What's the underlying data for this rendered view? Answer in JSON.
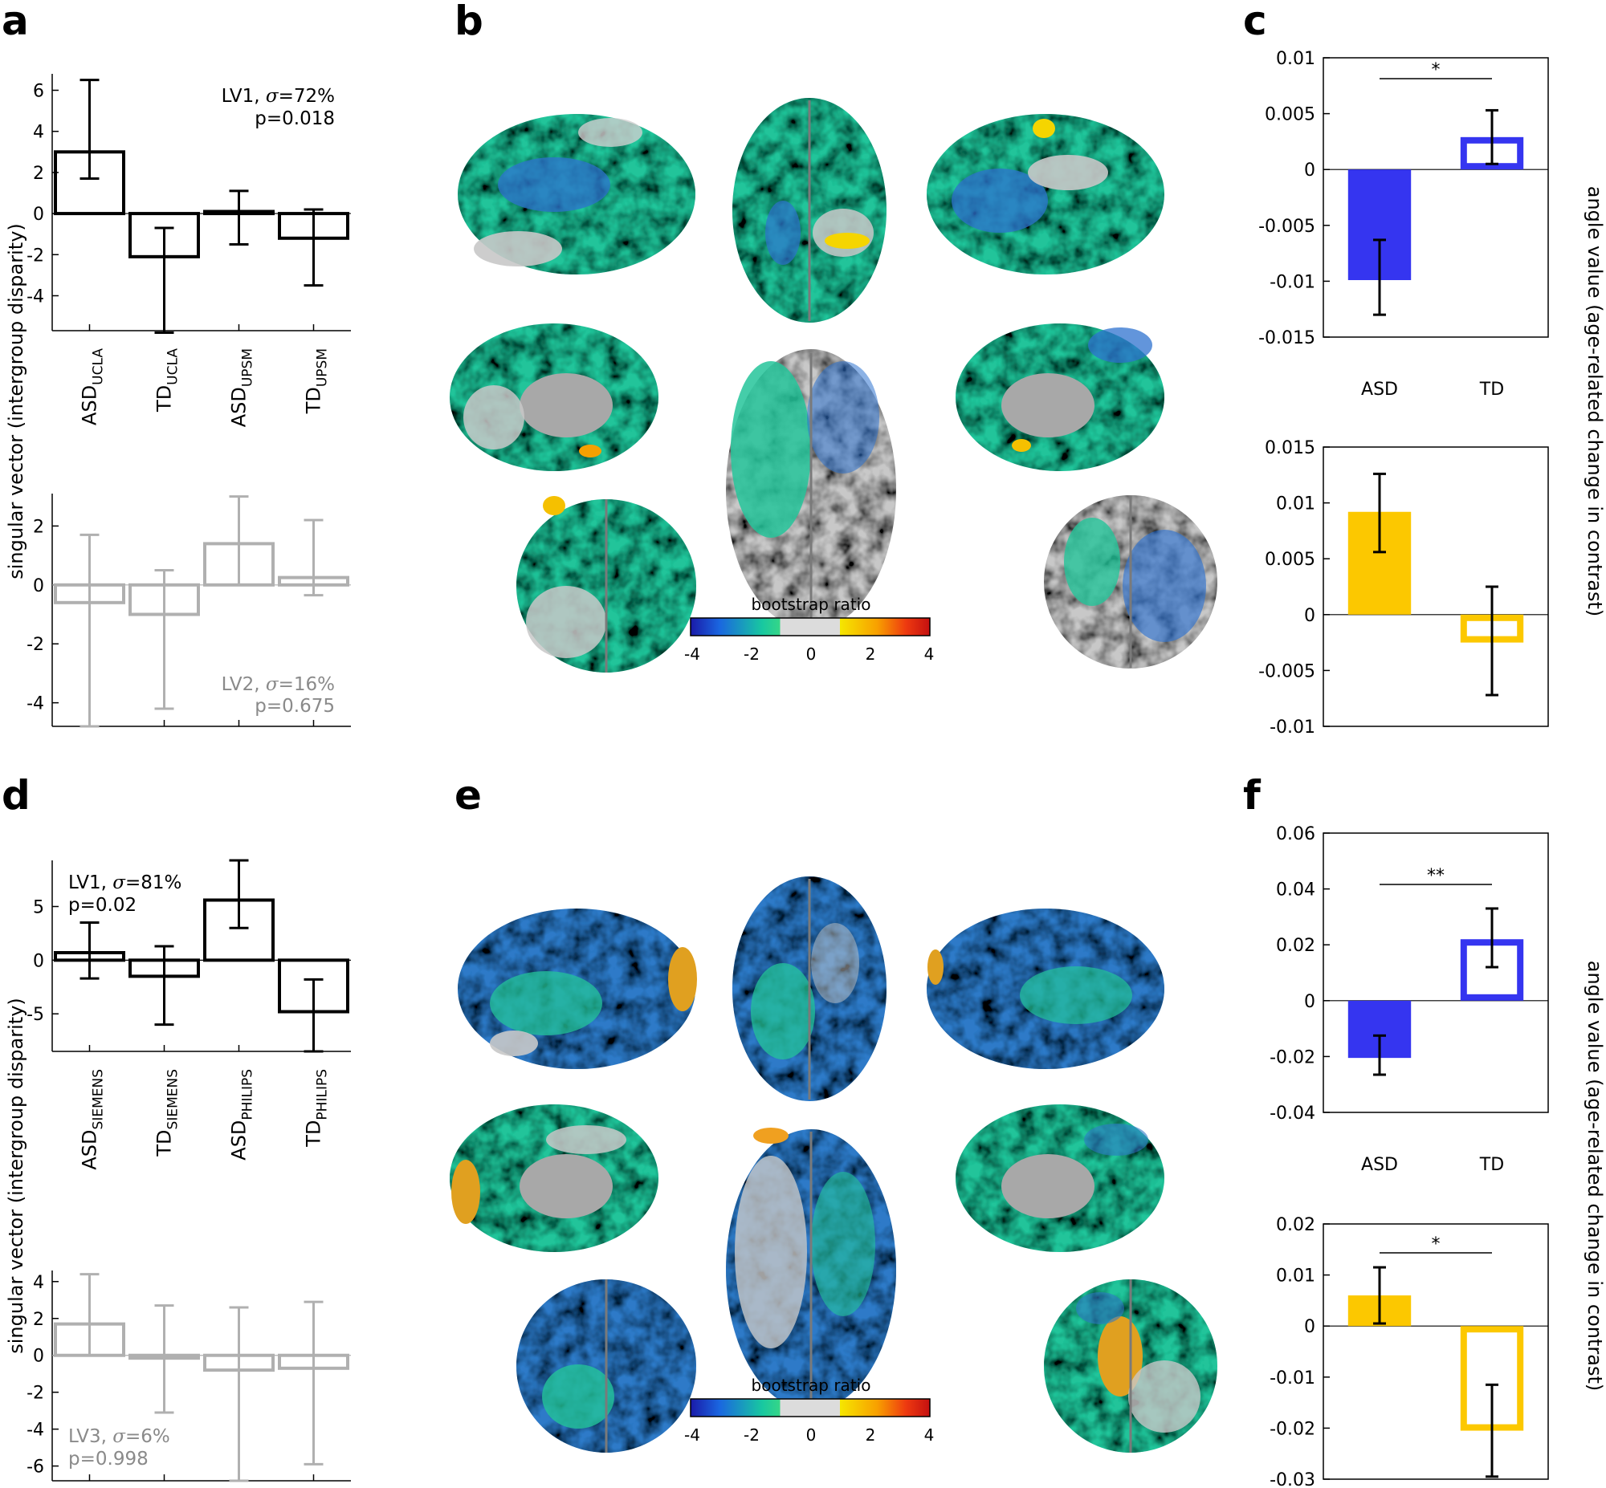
{
  "panel_letters": {
    "a": "a",
    "b": "b",
    "c": "c",
    "d": "d",
    "e": "e",
    "f": "f"
  },
  "shared": {
    "left_ylabel": "singular vector (intergroup disparity)",
    "right_ylabel": "angle value (age-related change in contrast)",
    "colorbar_title": "bootstrap ratio",
    "colorbar_ticks": [
      "-4",
      "-2",
      "0",
      "2",
      "4"
    ],
    "colorbar_colors": [
      "#1a1aa8",
      "#1a66e0",
      "#18c8a0",
      "#36d687",
      "#dcdcdc",
      "#f5e600",
      "#f8a000",
      "#ee3a10",
      "#c41010"
    ]
  },
  "colors": {
    "blue": "#3535f0",
    "yellow": "#fcc800",
    "black": "#000000",
    "grey": "#b0b0b0",
    "grey_text": "#8a8a8a"
  },
  "chart_data": [
    {
      "id": "a_top",
      "type": "bar",
      "panel": "a",
      "categories": [
        {
          "base": "ASD",
          "sub": "UCLA"
        },
        {
          "base": "TD",
          "sub": "UCLA"
        },
        {
          "base": "ASD",
          "sub": "UPSM"
        },
        {
          "base": "TD",
          "sub": "UPSM"
        }
      ],
      "values": [
        3.0,
        -2.1,
        0.1,
        -1.2
      ],
      "err_low": [
        1.7,
        -5.8,
        -1.5,
        -3.5
      ],
      "err_high": [
        6.5,
        -0.7,
        1.1,
        0.2
      ],
      "ylim": [
        -5.7,
        6.8
      ],
      "yticks": [
        -4,
        -2,
        0,
        2,
        4,
        6
      ],
      "ytick_labels": [
        "-4",
        "-2",
        "0",
        "2",
        "4",
        "6"
      ],
      "annotation": {
        "lv": "LV1",
        "sigma_sym": "σ",
        "sigma": "=72%",
        "p": "p=0.018"
      }
    },
    {
      "id": "a_bottom",
      "type": "bar",
      "panel": "a",
      "values": [
        -0.6,
        -1.0,
        1.4,
        0.25
      ],
      "err_low": [
        -4.8,
        -4.2,
        0.0,
        -0.35
      ],
      "err_high": [
        1.7,
        0.5,
        3.0,
        2.2
      ],
      "ylim": [
        -4.8,
        3.1
      ],
      "yticks": [
        -4,
        -2,
        0,
        2
      ],
      "ytick_labels": [
        "-4",
        "-2",
        "0",
        "2"
      ],
      "annotation": {
        "lv": "LV2",
        "sigma_sym": "σ",
        "sigma": "=16%",
        "p": "p=0.675"
      }
    },
    {
      "id": "c_top",
      "type": "bar",
      "panel": "c",
      "categories": [
        "ASD",
        "TD"
      ],
      "values": [
        -0.0099,
        0.0029
      ],
      "err_low": [
        -0.013,
        0.0005
      ],
      "err_high": [
        -0.0063,
        0.0053
      ],
      "ylim": [
        -0.015,
        0.01
      ],
      "yticks": [
        -0.015,
        -0.01,
        -0.005,
        0,
        0.005,
        0.01
      ],
      "ytick_labels": [
        "-0.015",
        "-0.01",
        "-0.005",
        "0",
        "0.005",
        "0.01"
      ],
      "significance": "*"
    },
    {
      "id": "c_bottom",
      "type": "bar",
      "panel": "c",
      "values": [
        0.0092,
        -0.0025
      ],
      "err_low": [
        0.0056,
        -0.0072
      ],
      "err_high": [
        0.0126,
        0.0025
      ],
      "ylim": [
        -0.01,
        0.015
      ],
      "yticks": [
        -0.01,
        -0.005,
        0,
        0.005,
        0.01,
        0.015
      ],
      "ytick_labels": [
        "-0.01",
        "-0.005",
        "0",
        "0.005",
        "0.01",
        "0.015"
      ]
    },
    {
      "id": "d_top",
      "type": "bar",
      "panel": "d",
      "categories": [
        {
          "base": "ASD",
          "sub": "SIEMENS"
        },
        {
          "base": "TD",
          "sub": "SIEMENS"
        },
        {
          "base": "ASD",
          "sub": "PHILIPS"
        },
        {
          "base": "TD",
          "sub": "PHILIPS"
        }
      ],
      "values": [
        0.7,
        -1.5,
        5.6,
        -4.8
      ],
      "err_low": [
        -1.7,
        -6.0,
        3.0,
        -8.5
      ],
      "err_high": [
        3.5,
        1.3,
        9.3,
        -1.8
      ],
      "ylim": [
        -8.5,
        9.3
      ],
      "yticks": [
        -5,
        0,
        5
      ],
      "ytick_labels": [
        "-5",
        "0",
        "5"
      ],
      "annotation": {
        "lv": "LV1",
        "sigma_sym": "σ",
        "sigma": "=81%",
        "p": "p=0.02"
      }
    },
    {
      "id": "d_bottom",
      "type": "bar",
      "panel": "d",
      "values": [
        1.7,
        -0.15,
        -0.8,
        -0.7
      ],
      "err_low": [
        0.0,
        -3.1,
        -6.8,
        -5.9
      ],
      "err_high": [
        4.4,
        2.7,
        2.6,
        2.9
      ],
      "ylim": [
        -6.8,
        4.6
      ],
      "yticks": [
        -6,
        -4,
        -2,
        0,
        2,
        4
      ],
      "ytick_labels": [
        "-6",
        "-4",
        "-2",
        "0",
        "2",
        "4"
      ],
      "annotation": {
        "lv": "LV3",
        "sigma_sym": "σ",
        "sigma": "=6%",
        "p": "p=0.998"
      }
    },
    {
      "id": "f_top",
      "type": "bar",
      "panel": "f",
      "categories": [
        "ASD",
        "TD"
      ],
      "values": [
        -0.0205,
        0.022
      ],
      "err_low": [
        -0.0265,
        0.012
      ],
      "err_high": [
        -0.0125,
        0.033
      ],
      "ylim": [
        -0.04,
        0.06
      ],
      "yticks": [
        -0.04,
        -0.02,
        0,
        0.02,
        0.04,
        0.06
      ],
      "ytick_labels": [
        "-0.04",
        "-0.02",
        "0",
        "0.02",
        "0.04",
        "0.06"
      ],
      "significance": "**"
    },
    {
      "id": "f_bottom",
      "type": "bar",
      "panel": "f",
      "values": [
        0.006,
        -0.0205
      ],
      "err_low": [
        0.0005,
        -0.0295
      ],
      "err_high": [
        0.0115,
        -0.0115
      ],
      "ylim": [
        -0.03,
        0.02
      ],
      "yticks": [
        -0.03,
        -0.02,
        -0.01,
        0,
        0.01,
        0.02
      ],
      "ytick_labels": [
        "-0.03",
        "-0.02",
        "-0.01",
        "0",
        "0.01",
        "0.02"
      ],
      "significance": "*"
    }
  ]
}
